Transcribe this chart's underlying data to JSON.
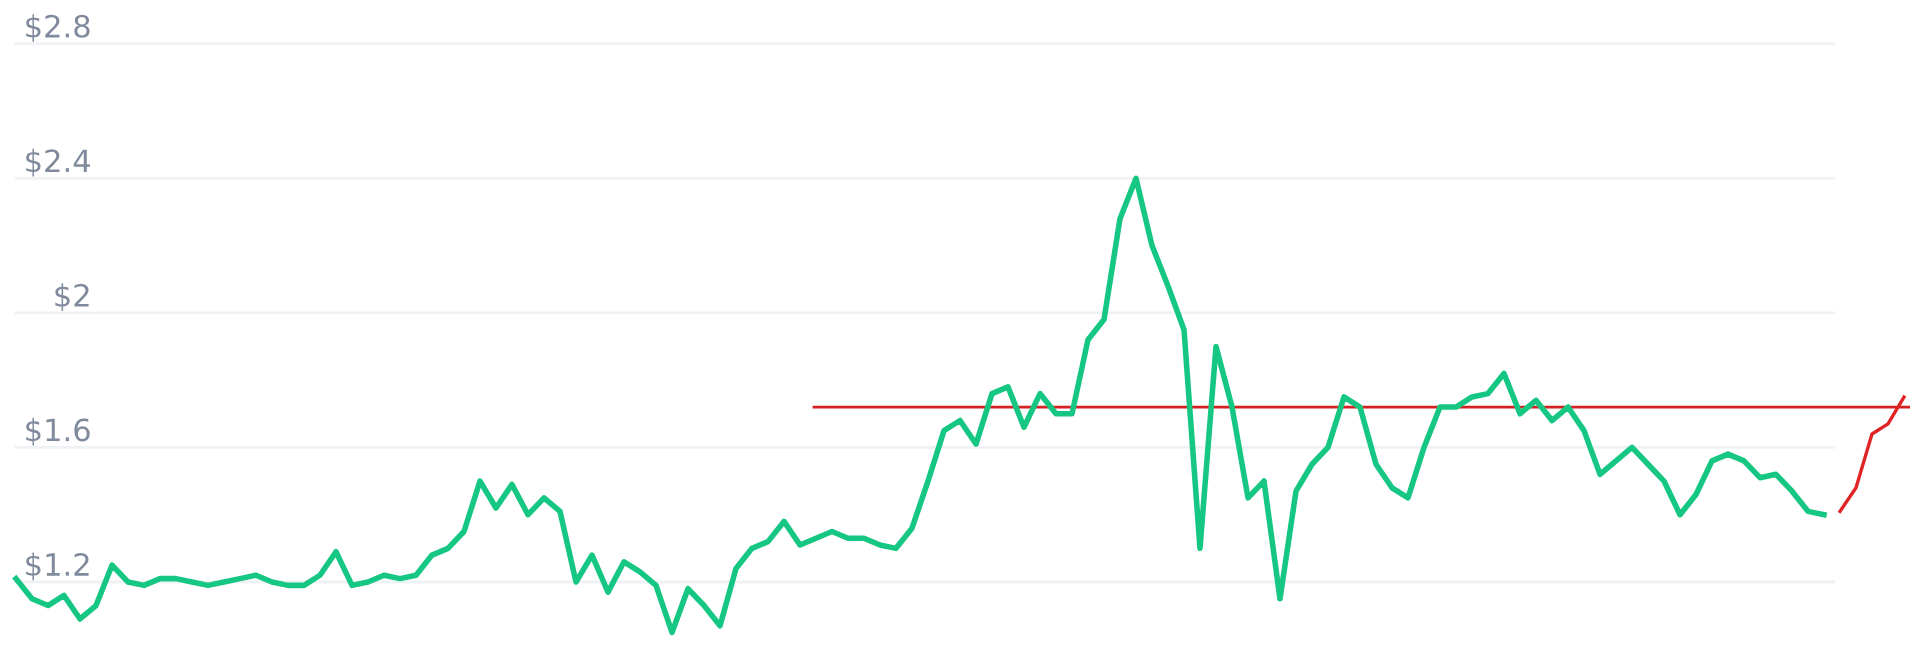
{
  "chart_data": {
    "type": "line",
    "categories": [
      null,
      null,
      null,
      null,
      null,
      null,
      null,
      null,
      null,
      null,
      null,
      null,
      null,
      null,
      null,
      null,
      null,
      null,
      null,
      null,
      null,
      null,
      null,
      null,
      null,
      null,
      null,
      null,
      null,
      null,
      null,
      null,
      null,
      null,
      null,
      null,
      null,
      null,
      null,
      null,
      null,
      null,
      null,
      null,
      null,
      null,
      null,
      null,
      null,
      null,
      null,
      null,
      null,
      null,
      null,
      null,
      null,
      null,
      null,
      null,
      null,
      null,
      null,
      null,
      null,
      null,
      null,
      null,
      null,
      null,
      null,
      null,
      null,
      null,
      null,
      null,
      null,
      null,
      null,
      null,
      null,
      null,
      null,
      null,
      null,
      null,
      null,
      null,
      null,
      null,
      null,
      null,
      null,
      null,
      null,
      null,
      null,
      null,
      null,
      null,
      null,
      null,
      null,
      null,
      null,
      null,
      null,
      null,
      null,
      null,
      null,
      null,
      null,
      null,
      null,
      null,
      null,
      null,
      null
    ],
    "series": [
      {
        "color": "#16c784",
        "values": [
          1.21,
          1.15,
          1.13,
          1.16,
          1.09,
          1.13,
          1.25,
          1.2,
          1.19,
          1.21,
          1.21,
          1.2,
          1.19,
          1.2,
          1.21,
          1.22,
          1.2,
          1.19,
          1.19,
          1.22,
          1.29,
          1.19,
          1.2,
          1.22,
          1.21,
          1.22,
          1.28,
          1.3,
          1.35,
          1.5,
          1.42,
          1.49,
          1.4,
          1.45,
          1.41,
          1.2,
          1.28,
          1.17,
          1.26,
          1.23,
          1.19,
          1.05,
          1.18,
          1.13,
          1.07,
          1.24,
          1.3,
          1.32,
          1.38,
          1.31,
          1.33,
          1.35,
          1.33,
          1.33,
          1.31,
          1.3,
          1.36,
          1.5,
          1.65,
          1.68,
          1.61,
          1.76,
          1.78,
          1.66,
          1.76,
          1.7,
          1.7,
          1.92,
          1.98,
          2.28,
          2.4,
          2.2,
          2.08,
          1.95,
          1.3,
          1.9,
          1.72,
          1.45,
          1.5,
          1.15,
          1.47,
          1.55,
          1.6,
          1.75,
          1.72,
          1.55,
          1.48,
          1.45,
          1.6,
          1.72,
          1.72,
          1.75,
          1.76,
          1.82,
          1.7,
          1.74,
          1.68,
          1.72,
          1.65,
          1.52,
          1.56,
          1.6,
          1.55,
          1.5,
          1.4,
          1.46,
          1.56,
          1.58,
          1.56,
          1.51,
          1.52,
          1.47,
          1.41,
          1.4,
          null,
          null,
          null,
          null,
          null
        ]
      },
      {
        "color": "#e02424",
        "values": [
          null,
          null,
          null,
          null,
          null,
          null,
          null,
          null,
          null,
          null,
          null,
          null,
          null,
          null,
          null,
          null,
          null,
          null,
          null,
          null,
          null,
          null,
          null,
          null,
          null,
          null,
          null,
          null,
          null,
          null,
          null,
          null,
          null,
          null,
          null,
          null,
          null,
          null,
          null,
          null,
          null,
          null,
          null,
          null,
          null,
          null,
          null,
          null,
          null,
          null,
          null,
          null,
          null,
          null,
          null,
          null,
          null,
          null,
          null,
          null,
          null,
          null,
          null,
          null,
          null,
          null,
          null,
          null,
          null,
          null,
          null,
          null,
          null,
          null,
          null,
          null,
          null,
          null,
          null,
          null,
          null,
          null,
          null,
          null,
          null,
          null,
          null,
          null,
          null,
          null,
          null,
          null,
          null,
          null,
          null,
          null,
          null,
          null,
          null,
          null,
          null,
          null,
          null,
          null,
          null,
          null,
          null,
          null,
          null,
          null,
          null,
          null,
          null,
          null,
          1.41,
          1.48,
          1.64,
          1.67,
          1.75
        ]
      }
    ],
    "ylim": [
      0.98,
      2.93
    ],
    "yticks": [
      {
        "value": 1.2,
        "label": "$1.2"
      },
      {
        "value": 1.6,
        "label": "$1.6"
      },
      {
        "value": 2,
        "label": "$2"
      },
      {
        "value": 2.4,
        "label": "$2.4"
      },
      {
        "value": 2.8,
        "label": "$2.8"
      }
    ],
    "grid": "y",
    "tick_labels": "y",
    "ref_lines": [
      {
        "axis": "y",
        "value": 1.72,
        "color": "#d42020"
      }
    ]
  }
}
